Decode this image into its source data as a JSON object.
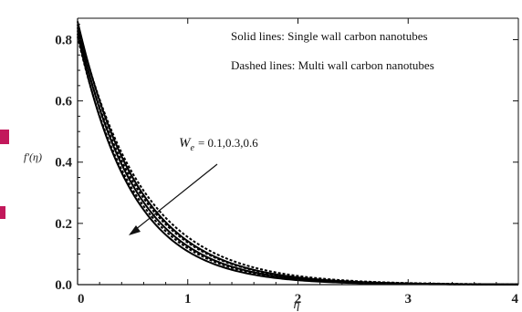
{
  "chart_data": {
    "type": "line",
    "xlabel": "η",
    "ylabel": "f′(η)",
    "xlim": [
      0,
      4
    ],
    "ylim": [
      0,
      0.87
    ],
    "x_ticks": [
      "0",
      "1",
      "2",
      "3",
      "4"
    ],
    "y_ticks": [
      "0.0",
      "0.2",
      "0.4",
      "0.6",
      "0.8"
    ],
    "x_tick_values": [
      0,
      1,
      2,
      3,
      4
    ],
    "y_tick_values": [
      0,
      0.2,
      0.4,
      0.6,
      0.8
    ],
    "legend": {
      "solid": "Solid lines: Single wall carbon nanotubes",
      "dashed": "Dashed lines: Multi wall carbon nanotubes",
      "placement": "top-right"
    },
    "annotation": {
      "symbol": "W",
      "subscript": "e",
      "text": "= 0.1,0.3,0.6",
      "arrow_direction": "decreasing"
    },
    "grid": false,
    "series": [
      {
        "style": "solid",
        "We": 0.1,
        "f0": 0.86,
        "decay": 1.8
      },
      {
        "style": "solid",
        "We": 0.3,
        "f0": 0.84,
        "decay": 1.9
      },
      {
        "style": "solid",
        "We": 0.6,
        "f0": 0.82,
        "decay": 2.02
      },
      {
        "style": "dashed",
        "We": 0.1,
        "f0": 0.85,
        "decay": 1.7
      },
      {
        "style": "dashed",
        "We": 0.3,
        "f0": 0.83,
        "decay": 1.8
      },
      {
        "style": "dashed",
        "We": 0.6,
        "f0": 0.81,
        "decay": 1.92
      }
    ]
  }
}
